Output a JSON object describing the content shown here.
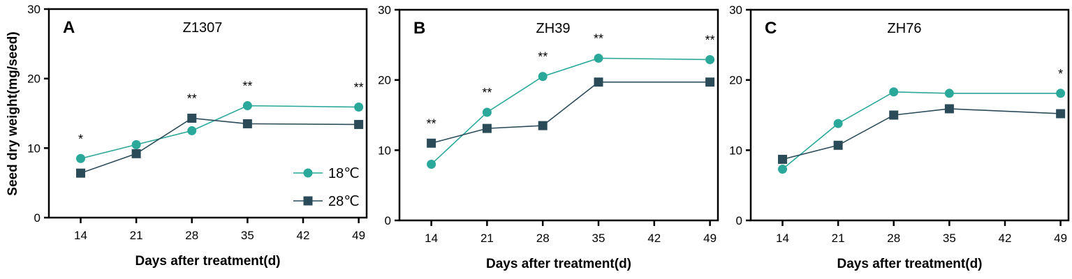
{
  "ylabel": "Seed dry weight(mg/seed)",
  "legend": [
    {
      "label": "18℃",
      "color": "#2aa89a",
      "marker": "circle"
    },
    {
      "label": "28℃",
      "color": "#2b4b59",
      "marker": "square"
    }
  ],
  "chart_data": [
    {
      "type": "line",
      "panel": "A",
      "title": "Z1307",
      "xlabel": "Days after treatment(d)",
      "ylabel": "Seed dry weight(mg/seed)",
      "x_ticks": [
        14,
        21,
        28,
        35,
        42,
        49
      ],
      "y_ticks": [
        0,
        10,
        20,
        30
      ],
      "xlim": [
        10,
        50
      ],
      "ylim": [
        0,
        30
      ],
      "x": [
        14,
        21,
        28,
        35,
        49
      ],
      "series": [
        {
          "name": "18℃",
          "color": "#2aa89a",
          "marker": "circle",
          "values": [
            8.5,
            10.5,
            12.5,
            16.1,
            15.9
          ]
        },
        {
          "name": "28℃",
          "color": "#2b4b59",
          "marker": "square",
          "values": [
            6.4,
            9.2,
            14.3,
            13.5,
            13.4
          ]
        }
      ],
      "significance": [
        {
          "x": 14,
          "label": "*"
        },
        {
          "x": 28,
          "label": "**"
        },
        {
          "x": 35,
          "label": "**"
        },
        {
          "x": 49,
          "label": "**"
        }
      ]
    },
    {
      "type": "line",
      "panel": "B",
      "title": "ZH39",
      "xlabel": "Days after treatment(d)",
      "ylabel": "",
      "x_ticks": [
        14,
        21,
        28,
        35,
        42,
        49
      ],
      "y_ticks": [
        0,
        10,
        20,
        30
      ],
      "xlim": [
        10,
        50
      ],
      "ylim": [
        0,
        30
      ],
      "x": [
        14,
        21,
        28,
        35,
        49
      ],
      "series": [
        {
          "name": "18℃",
          "color": "#2aa89a",
          "marker": "circle",
          "values": [
            8.0,
            15.4,
            20.5,
            23.1,
            22.9
          ]
        },
        {
          "name": "28℃",
          "color": "#2b4b59",
          "marker": "square",
          "values": [
            11.0,
            13.1,
            13.5,
            19.7,
            19.7
          ]
        }
      ],
      "significance": [
        {
          "x": 14,
          "label": "**"
        },
        {
          "x": 21,
          "label": "**"
        },
        {
          "x": 28,
          "label": "**"
        },
        {
          "x": 35,
          "label": "**"
        },
        {
          "x": 49,
          "label": "**"
        }
      ]
    },
    {
      "type": "line",
      "panel": "C",
      "title": "ZH76",
      "xlabel": "Days after treatment(d)",
      "ylabel": "",
      "x_ticks": [
        14,
        21,
        28,
        35,
        42,
        49
      ],
      "y_ticks": [
        0,
        10,
        20,
        30
      ],
      "xlim": [
        10,
        50
      ],
      "ylim": [
        0,
        30
      ],
      "x": [
        14,
        21,
        28,
        35,
        49
      ],
      "series": [
        {
          "name": "18℃",
          "color": "#2aa89a",
          "marker": "circle",
          "values": [
            7.3,
            13.8,
            18.3,
            18.1,
            18.1
          ]
        },
        {
          "name": "28℃",
          "color": "#2b4b59",
          "marker": "square",
          "values": [
            8.7,
            10.7,
            15.0,
            15.9,
            15.2
          ]
        }
      ],
      "significance": [
        {
          "x": 49,
          "label": "*"
        }
      ]
    }
  ]
}
